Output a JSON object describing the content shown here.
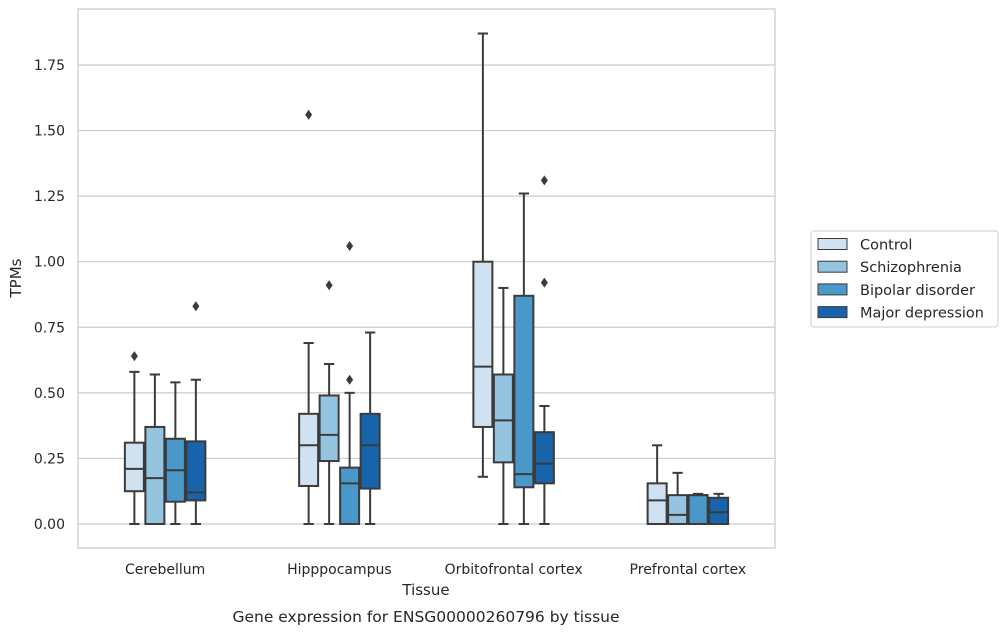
{
  "chart_data": {
    "type": "boxplot",
    "ylabel": "TPMs",
    "xlabel": "Tissue",
    "caption": "Gene expression for ENSG00000260796 by tissue",
    "ylim": [
      -0.09,
      1.97
    ],
    "yticks": [
      0.0,
      0.25,
      0.5,
      0.75,
      1.0,
      1.25,
      1.5,
      1.75
    ],
    "ytick_labels": [
      "0.00",
      "0.25",
      "0.50",
      "0.75",
      "1.00",
      "1.25",
      "1.50",
      "1.75"
    ],
    "grid": "horizontal",
    "legend_position": "right",
    "categories": [
      "Cerebellum",
      "Hipppocampus",
      "Orbitofrontal cortex",
      "Prefrontal cortex"
    ],
    "series": [
      {
        "name": "Control",
        "color": "#d0e1f2",
        "boxes": [
          {
            "whislo": 0.0,
            "q1": 0.125,
            "med": 0.21,
            "q3": 0.31,
            "whishi": 0.58,
            "fliers": [
              0.64
            ]
          },
          {
            "whislo": 0.0,
            "q1": 0.145,
            "med": 0.3,
            "q3": 0.42,
            "whishi": 0.69,
            "fliers": [
              1.56
            ]
          },
          {
            "whislo": 0.18,
            "q1": 0.37,
            "med": 0.6,
            "q3": 1.0,
            "whishi": 1.87,
            "fliers": []
          },
          {
            "whislo": 0.0,
            "q1": 0.0,
            "med": 0.09,
            "q3": 0.155,
            "whishi": 0.3,
            "fliers": []
          }
        ]
      },
      {
        "name": "Schizophrenia",
        "color": "#94c4df",
        "boxes": [
          {
            "whislo": 0.0,
            "q1": 0.0,
            "med": 0.175,
            "q3": 0.37,
            "whishi": 0.57,
            "fliers": []
          },
          {
            "whislo": 0.0,
            "q1": 0.24,
            "med": 0.34,
            "q3": 0.49,
            "whishi": 0.61,
            "fliers": [
              0.91
            ]
          },
          {
            "whislo": 0.0,
            "q1": 0.235,
            "med": 0.395,
            "q3": 0.57,
            "whishi": 0.9,
            "fliers": []
          },
          {
            "whislo": 0.0,
            "q1": 0.0,
            "med": 0.035,
            "q3": 0.11,
            "whishi": 0.195,
            "fliers": []
          }
        ]
      },
      {
        "name": "Bipolar disorder",
        "color": "#4a98c9",
        "boxes": [
          {
            "whislo": 0.0,
            "q1": 0.085,
            "med": 0.205,
            "q3": 0.325,
            "whishi": 0.54,
            "fliers": []
          },
          {
            "whislo": 0.0,
            "q1": 0.0,
            "med": 0.155,
            "q3": 0.215,
            "whishi": 0.5,
            "fliers": [
              0.55,
              1.06
            ]
          },
          {
            "whislo": 0.0,
            "q1": 0.14,
            "med": 0.19,
            "q3": 0.87,
            "whishi": 1.26,
            "fliers": []
          },
          {
            "whislo": 0.0,
            "q1": 0.0,
            "med": 0.11,
            "q3": 0.11,
            "whishi": 0.115,
            "fliers": []
          }
        ]
      },
      {
        "name": "Major depression",
        "color": "#1764ab",
        "boxes": [
          {
            "whislo": 0.0,
            "q1": 0.09,
            "med": 0.12,
            "q3": 0.315,
            "whishi": 0.55,
            "fliers": [
              0.83
            ]
          },
          {
            "whislo": 0.0,
            "q1": 0.135,
            "med": 0.3,
            "q3": 0.42,
            "whishi": 0.73,
            "fliers": []
          },
          {
            "whislo": 0.0,
            "q1": 0.155,
            "med": 0.23,
            "q3": 0.35,
            "whishi": 0.45,
            "fliers": [
              0.92,
              1.31
            ]
          },
          {
            "whislo": 0.0,
            "q1": 0.0,
            "med": 0.045,
            "q3": 0.1,
            "whishi": 0.115,
            "fliers": []
          }
        ]
      }
    ]
  },
  "colors": {
    "grid": "#cccccc",
    "frame": "#cccccc",
    "line": "#3b3b3b",
    "text": "#262626"
  }
}
